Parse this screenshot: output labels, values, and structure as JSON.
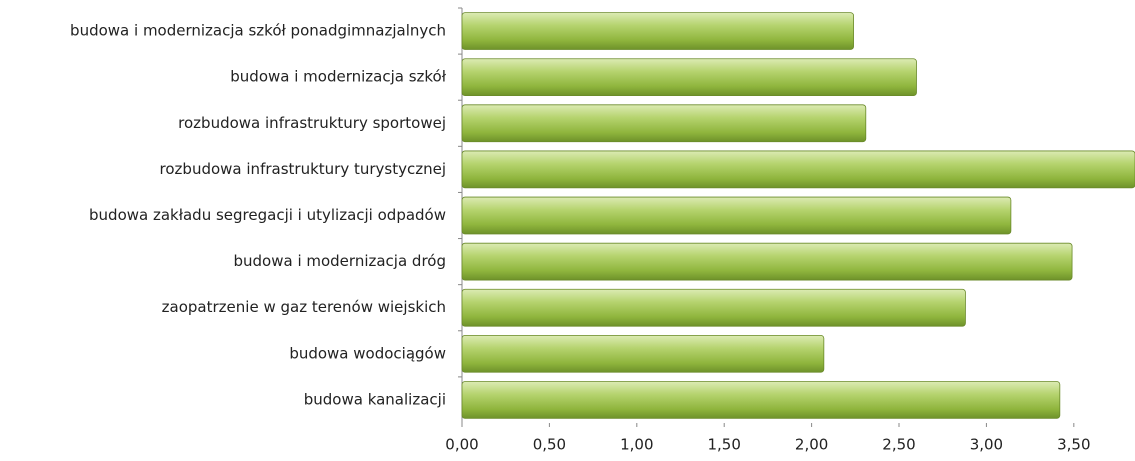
{
  "chart_data": {
    "type": "barh",
    "categories": [
      "budowa i modernizacja szkół ponadgimnazjalnych",
      "budowa i modernizacja szkół",
      "rozbudowa infrastruktury sportowej",
      "rozbudowa infrastruktury turystycznej",
      "budowa zakładu segregacji i utylizacji odpadów",
      "budowa i modernizacja dróg",
      "zaopatrzenie w gaz terenów wiejskich",
      "budowa wodociągów",
      "budowa kanalizacji"
    ],
    "values": [
      2.24,
      2.6,
      2.31,
      3.85,
      3.14,
      3.49,
      2.88,
      2.07,
      3.42
    ],
    "color": "#9bc04a",
    "xlim": [
      0,
      3.85
    ],
    "xticks": [
      {
        "value": 0,
        "label": "0,00"
      },
      {
        "value": 0.5,
        "label": "0,50"
      },
      {
        "value": 1,
        "label": "1,00"
      },
      {
        "value": 1.5,
        "label": "1,50"
      },
      {
        "value": 2,
        "label": "2,00"
      },
      {
        "value": 2.5,
        "label": "2,50"
      },
      {
        "value": 3,
        "label": "3,00"
      },
      {
        "value": 3.5,
        "label": "3,50"
      }
    ],
    "grid": false
  }
}
